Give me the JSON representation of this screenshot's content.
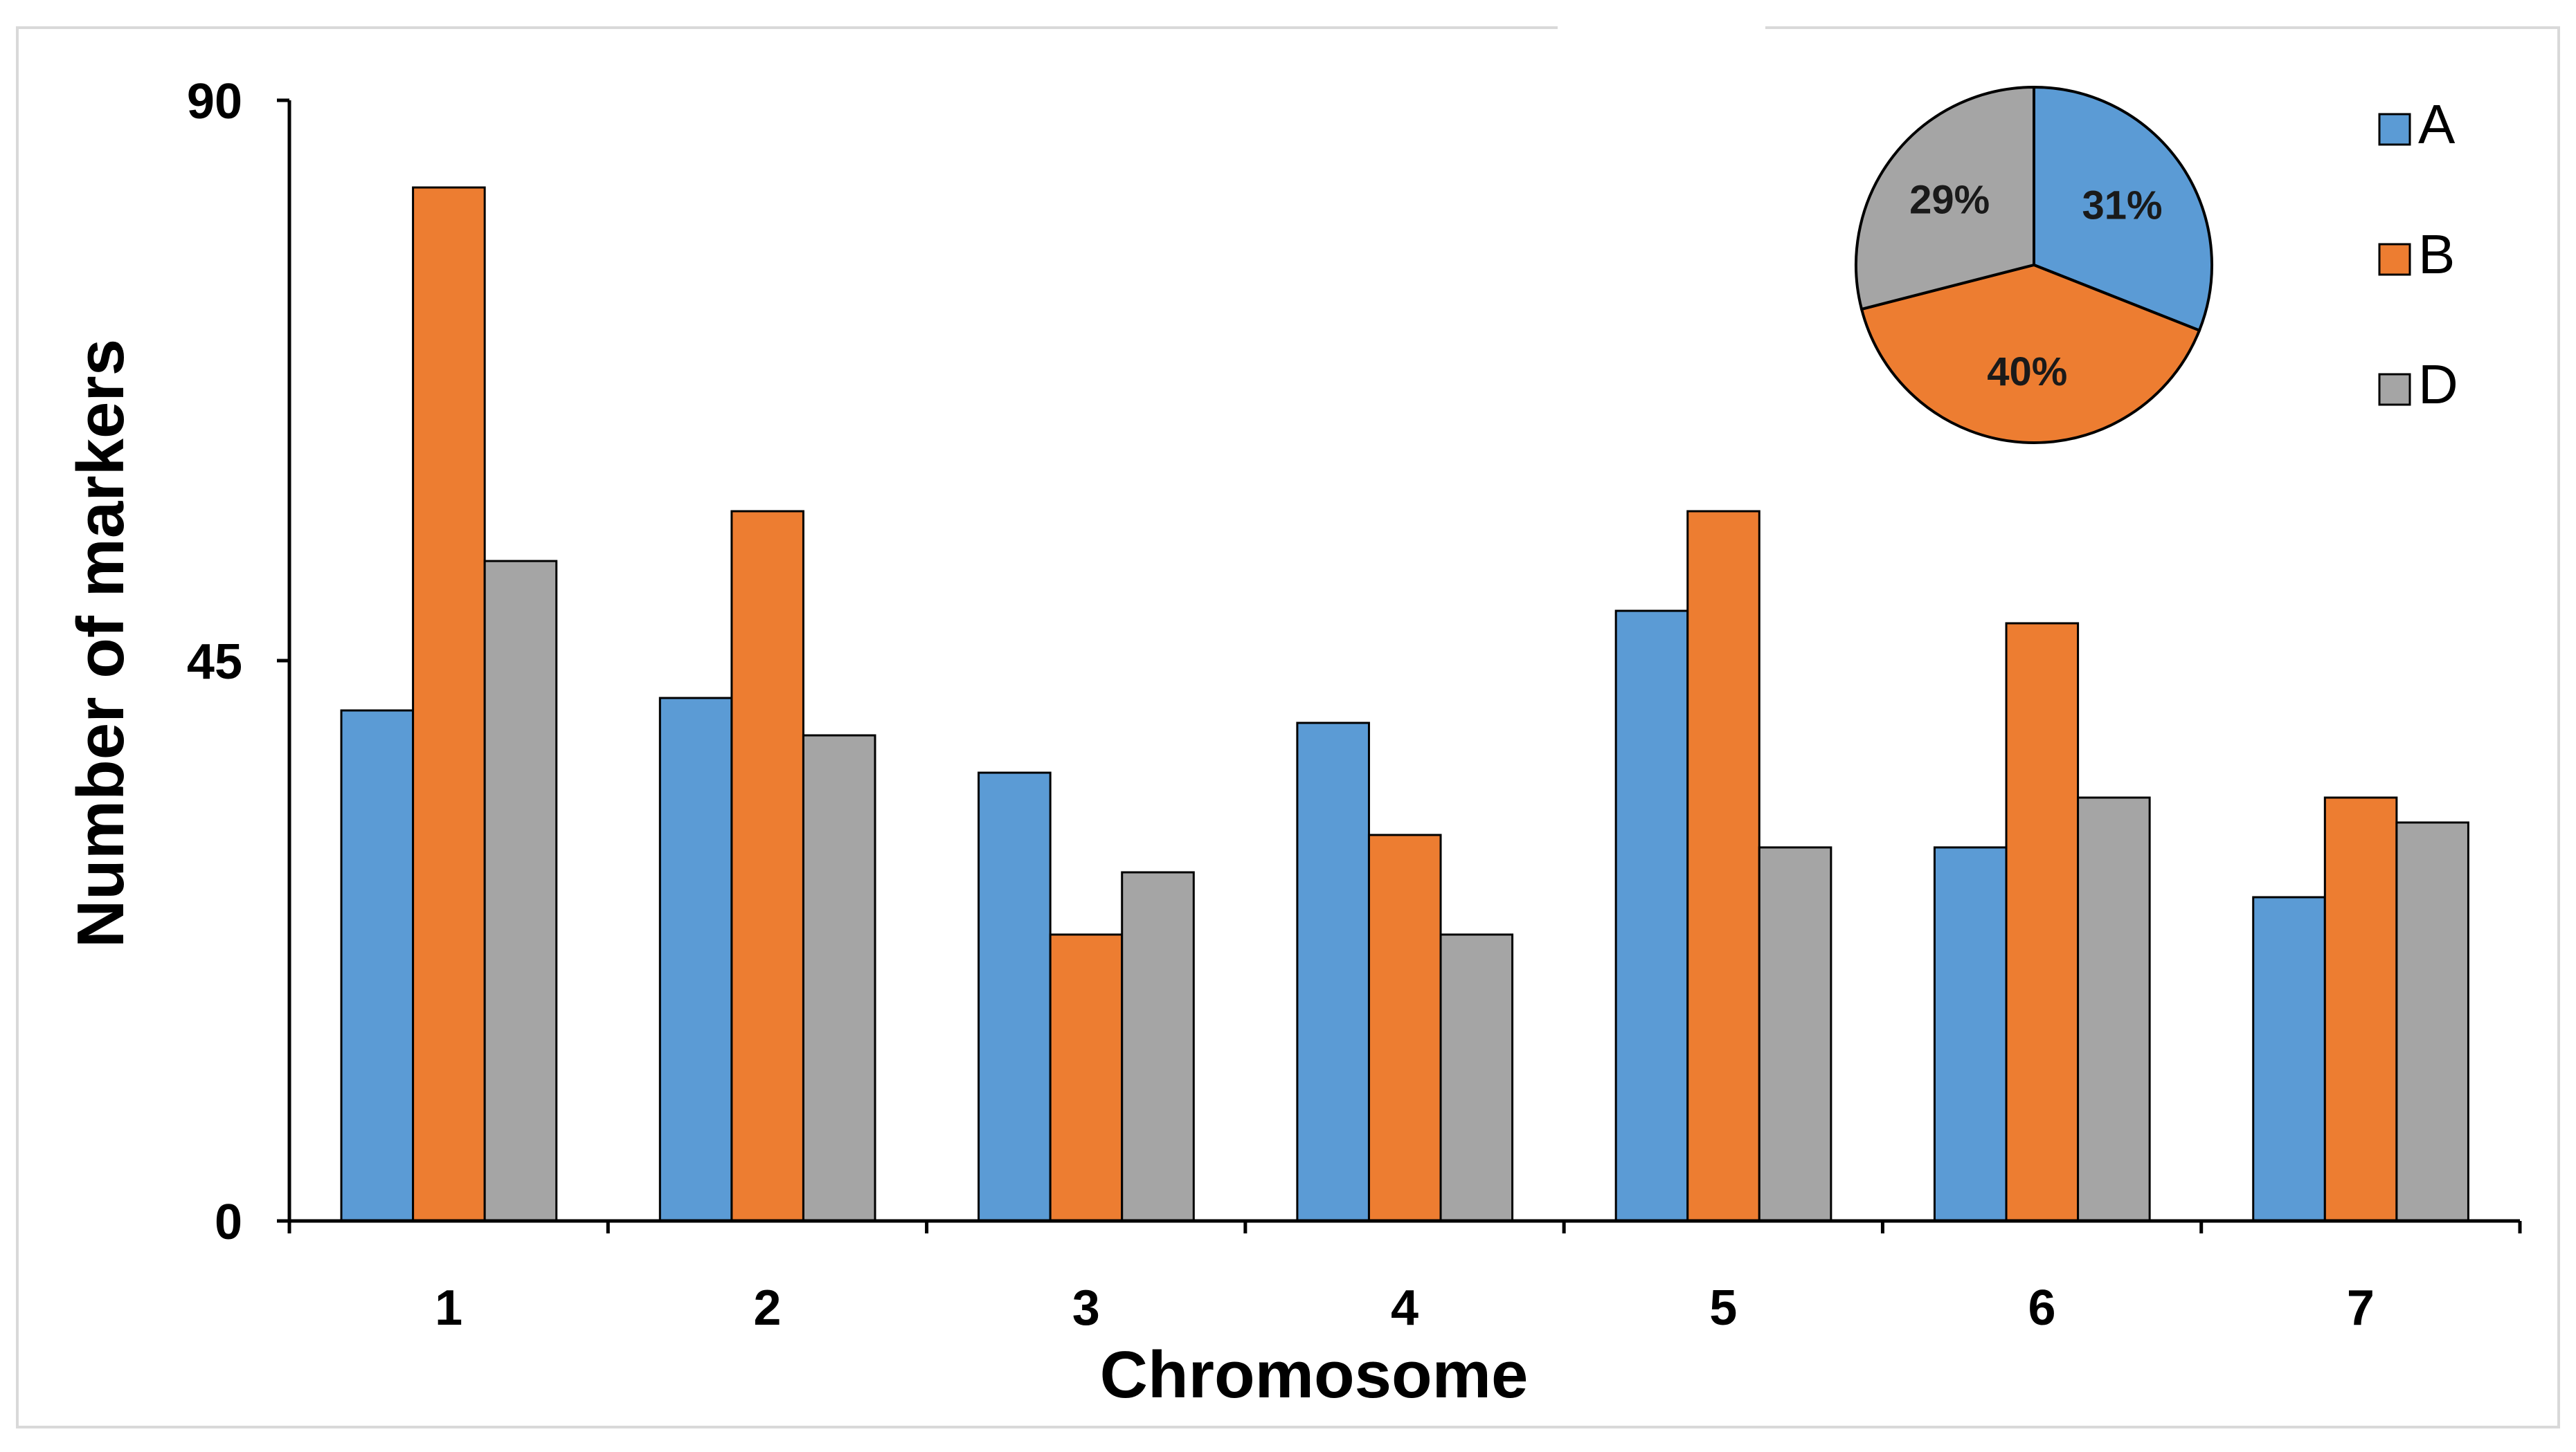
{
  "chart_data": [
    {
      "type": "bar",
      "title": "",
      "xlabel": "Chromosome",
      "ylabel": "Number of markers",
      "ylim": [
        0,
        90
      ],
      "yticks": [
        0,
        45,
        90
      ],
      "categories": [
        "1",
        "2",
        "3",
        "4",
        "5",
        "6",
        "7"
      ],
      "series": [
        {
          "name": "A",
          "color": "#5b9bd5",
          "values": [
            41,
            42,
            36,
            40,
            49,
            30,
            26
          ]
        },
        {
          "name": "B",
          "color": "#ed7d31",
          "values": [
            83,
            57,
            23,
            31,
            57,
            48,
            34
          ]
        },
        {
          "name": "D",
          "color": "#a5a5a5",
          "values": [
            53,
            39,
            28,
            23,
            30,
            34,
            32
          ]
        }
      ],
      "legend": {
        "position": "top-right",
        "entries": [
          "A",
          "B",
          "D"
        ]
      }
    },
    {
      "type": "pie",
      "position": "inset top-right",
      "slices": [
        {
          "name": "A",
          "value": 31,
          "label": "31%",
          "color": "#5b9bd5"
        },
        {
          "name": "B",
          "value": 40,
          "label": "40%",
          "color": "#ed7d31"
        },
        {
          "name": "D",
          "value": 29,
          "label": "29%",
          "color": "#a5a5a5"
        }
      ]
    }
  ]
}
